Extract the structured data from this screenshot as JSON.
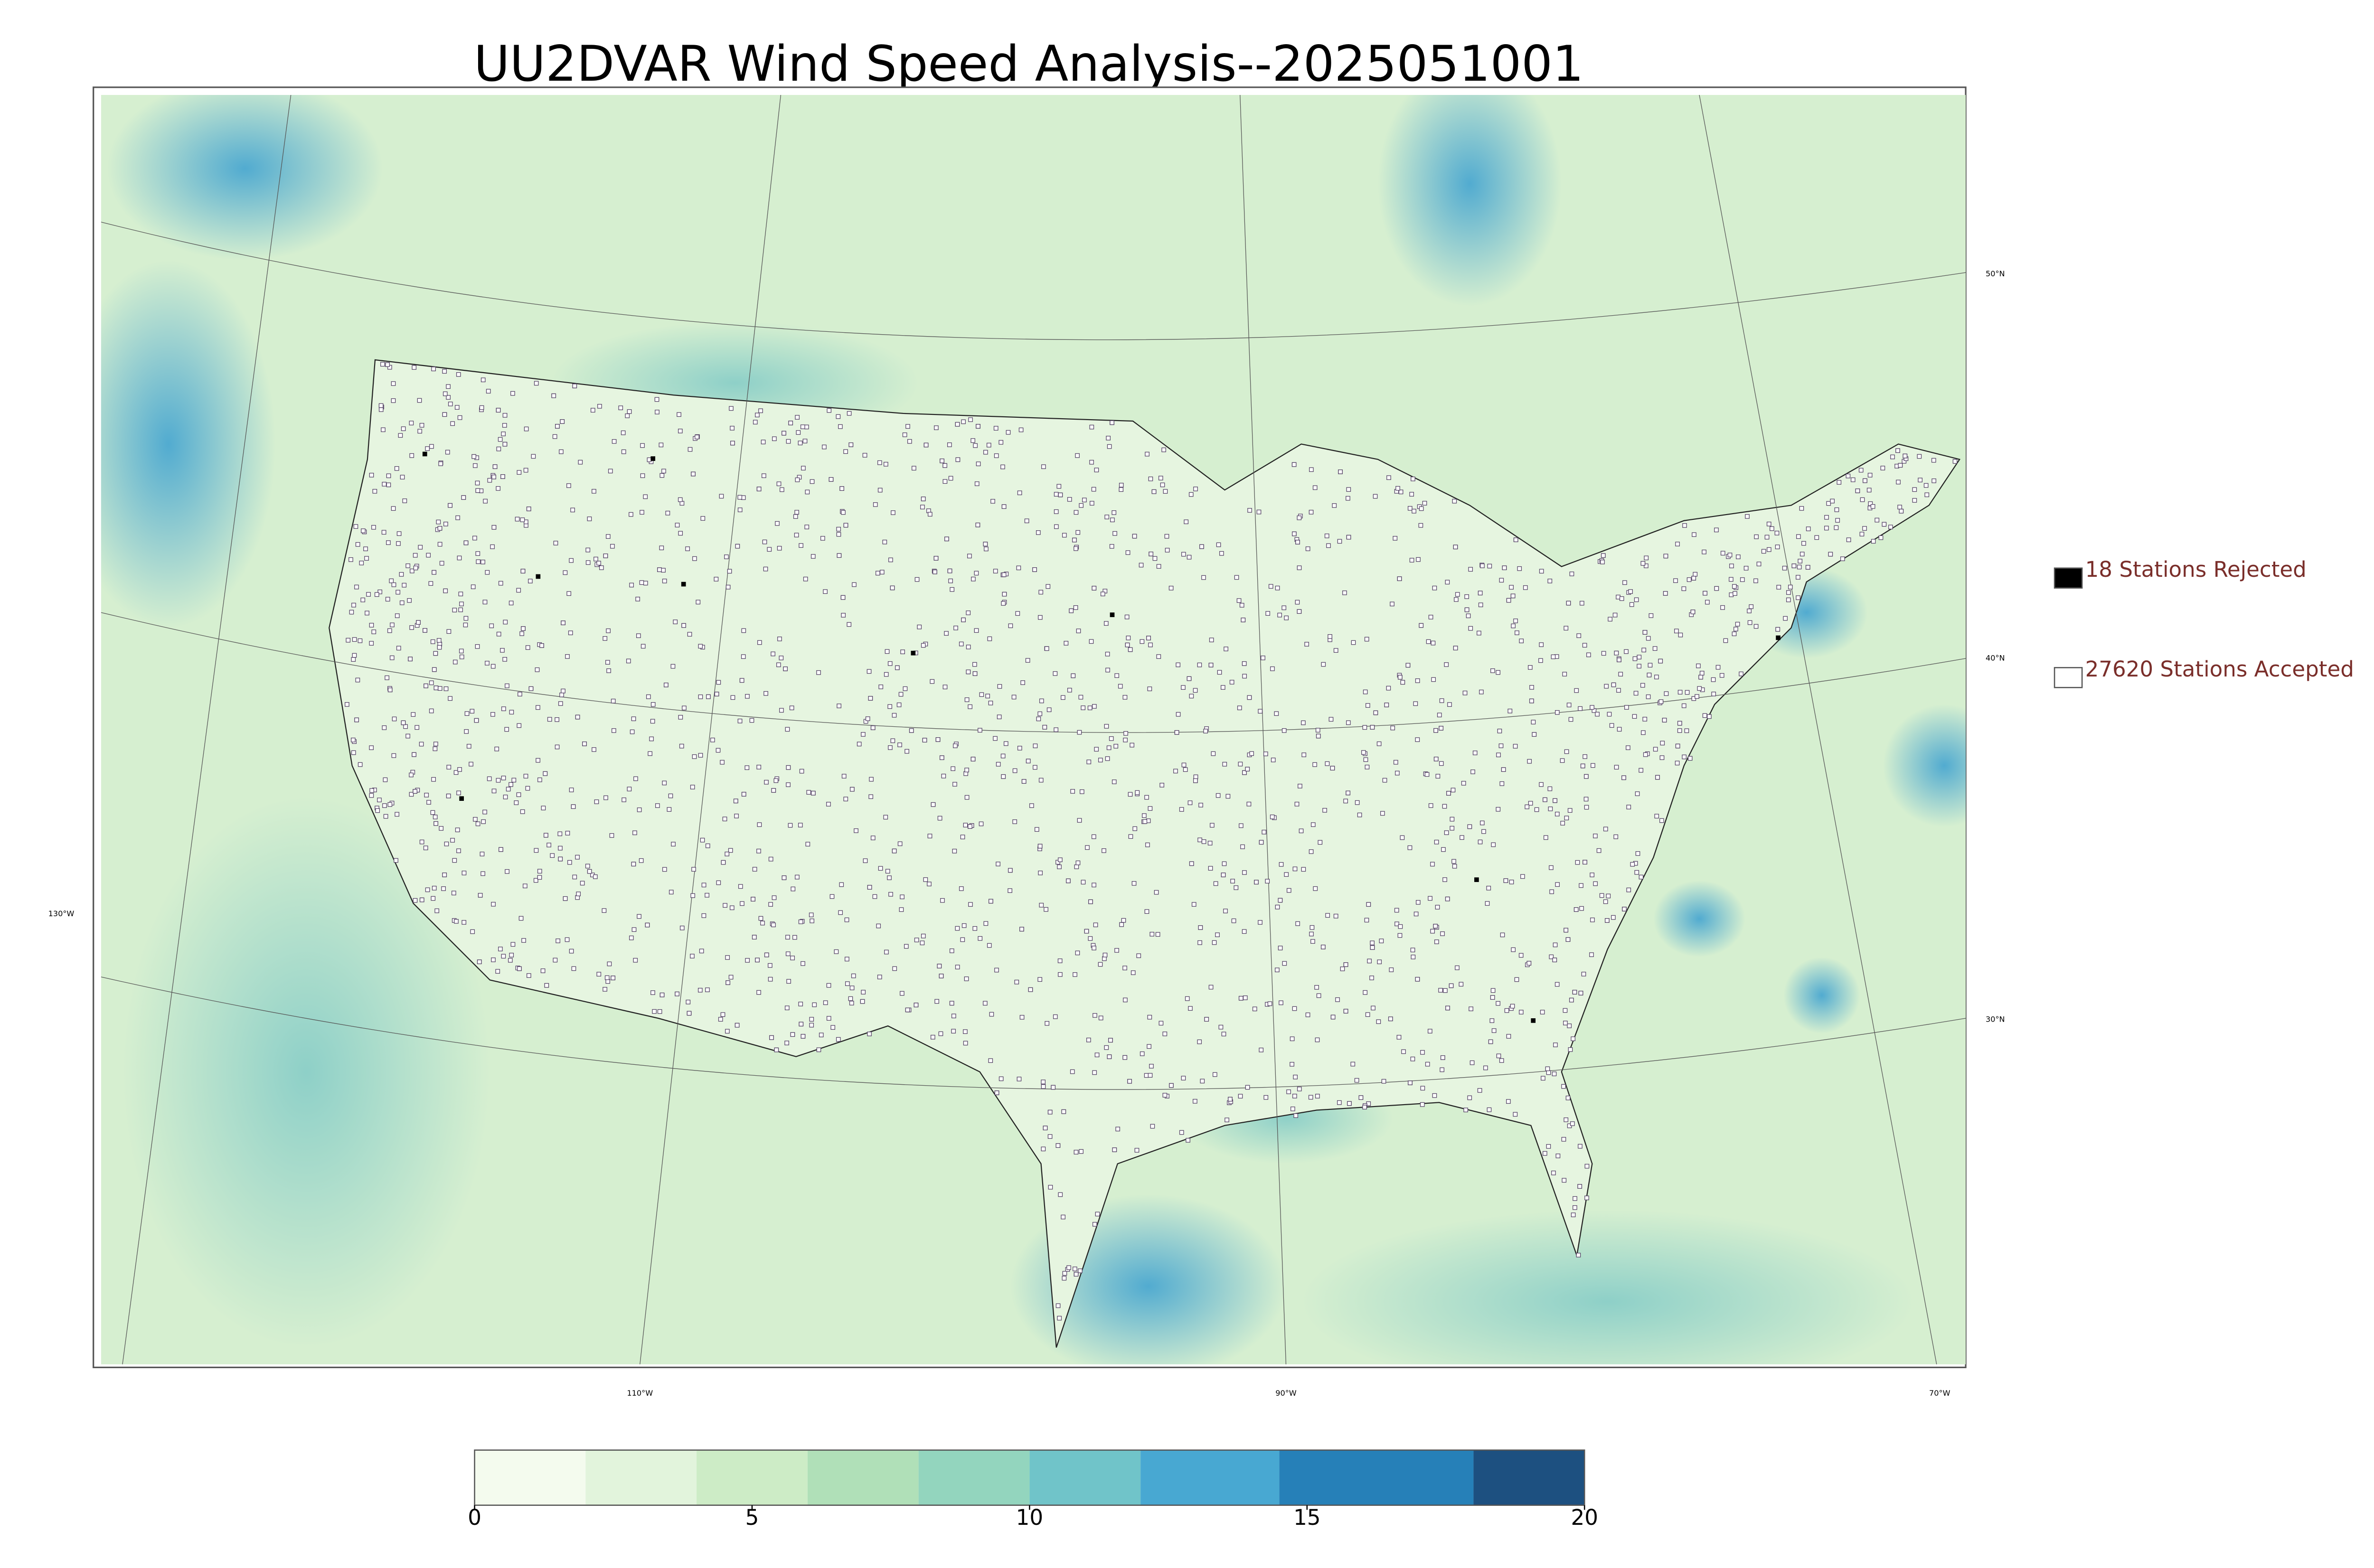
{
  "title": "UU2DVAR Wind Speed Analysis--2025051001",
  "legend": [
    {
      "label": "18 Stations Rejected",
      "marker": "filled"
    },
    {
      "label": "27620 Stations Accepted",
      "marker": "open"
    }
  ],
  "latitude_labels": [
    "50°N",
    "40°N",
    "30°N"
  ],
  "longitude_labels": [
    "130°W",
    "110°W",
    "90°W",
    "70°W"
  ],
  "colorbar": {
    "lim": [
      0,
      20
    ],
    "ticks": [
      0,
      5,
      10,
      15,
      20
    ],
    "bins": [
      0,
      2,
      4,
      6,
      8,
      10,
      12,
      14.5,
      18,
      20
    ],
    "colors": [
      "#f4fbee",
      "#e2f4dc",
      "#cdecc6",
      "#b0e0b8",
      "#93d5be",
      "#70c4c9",
      "#48a8d2",
      "#2680b8",
      "#1d5080"
    ]
  }
}
